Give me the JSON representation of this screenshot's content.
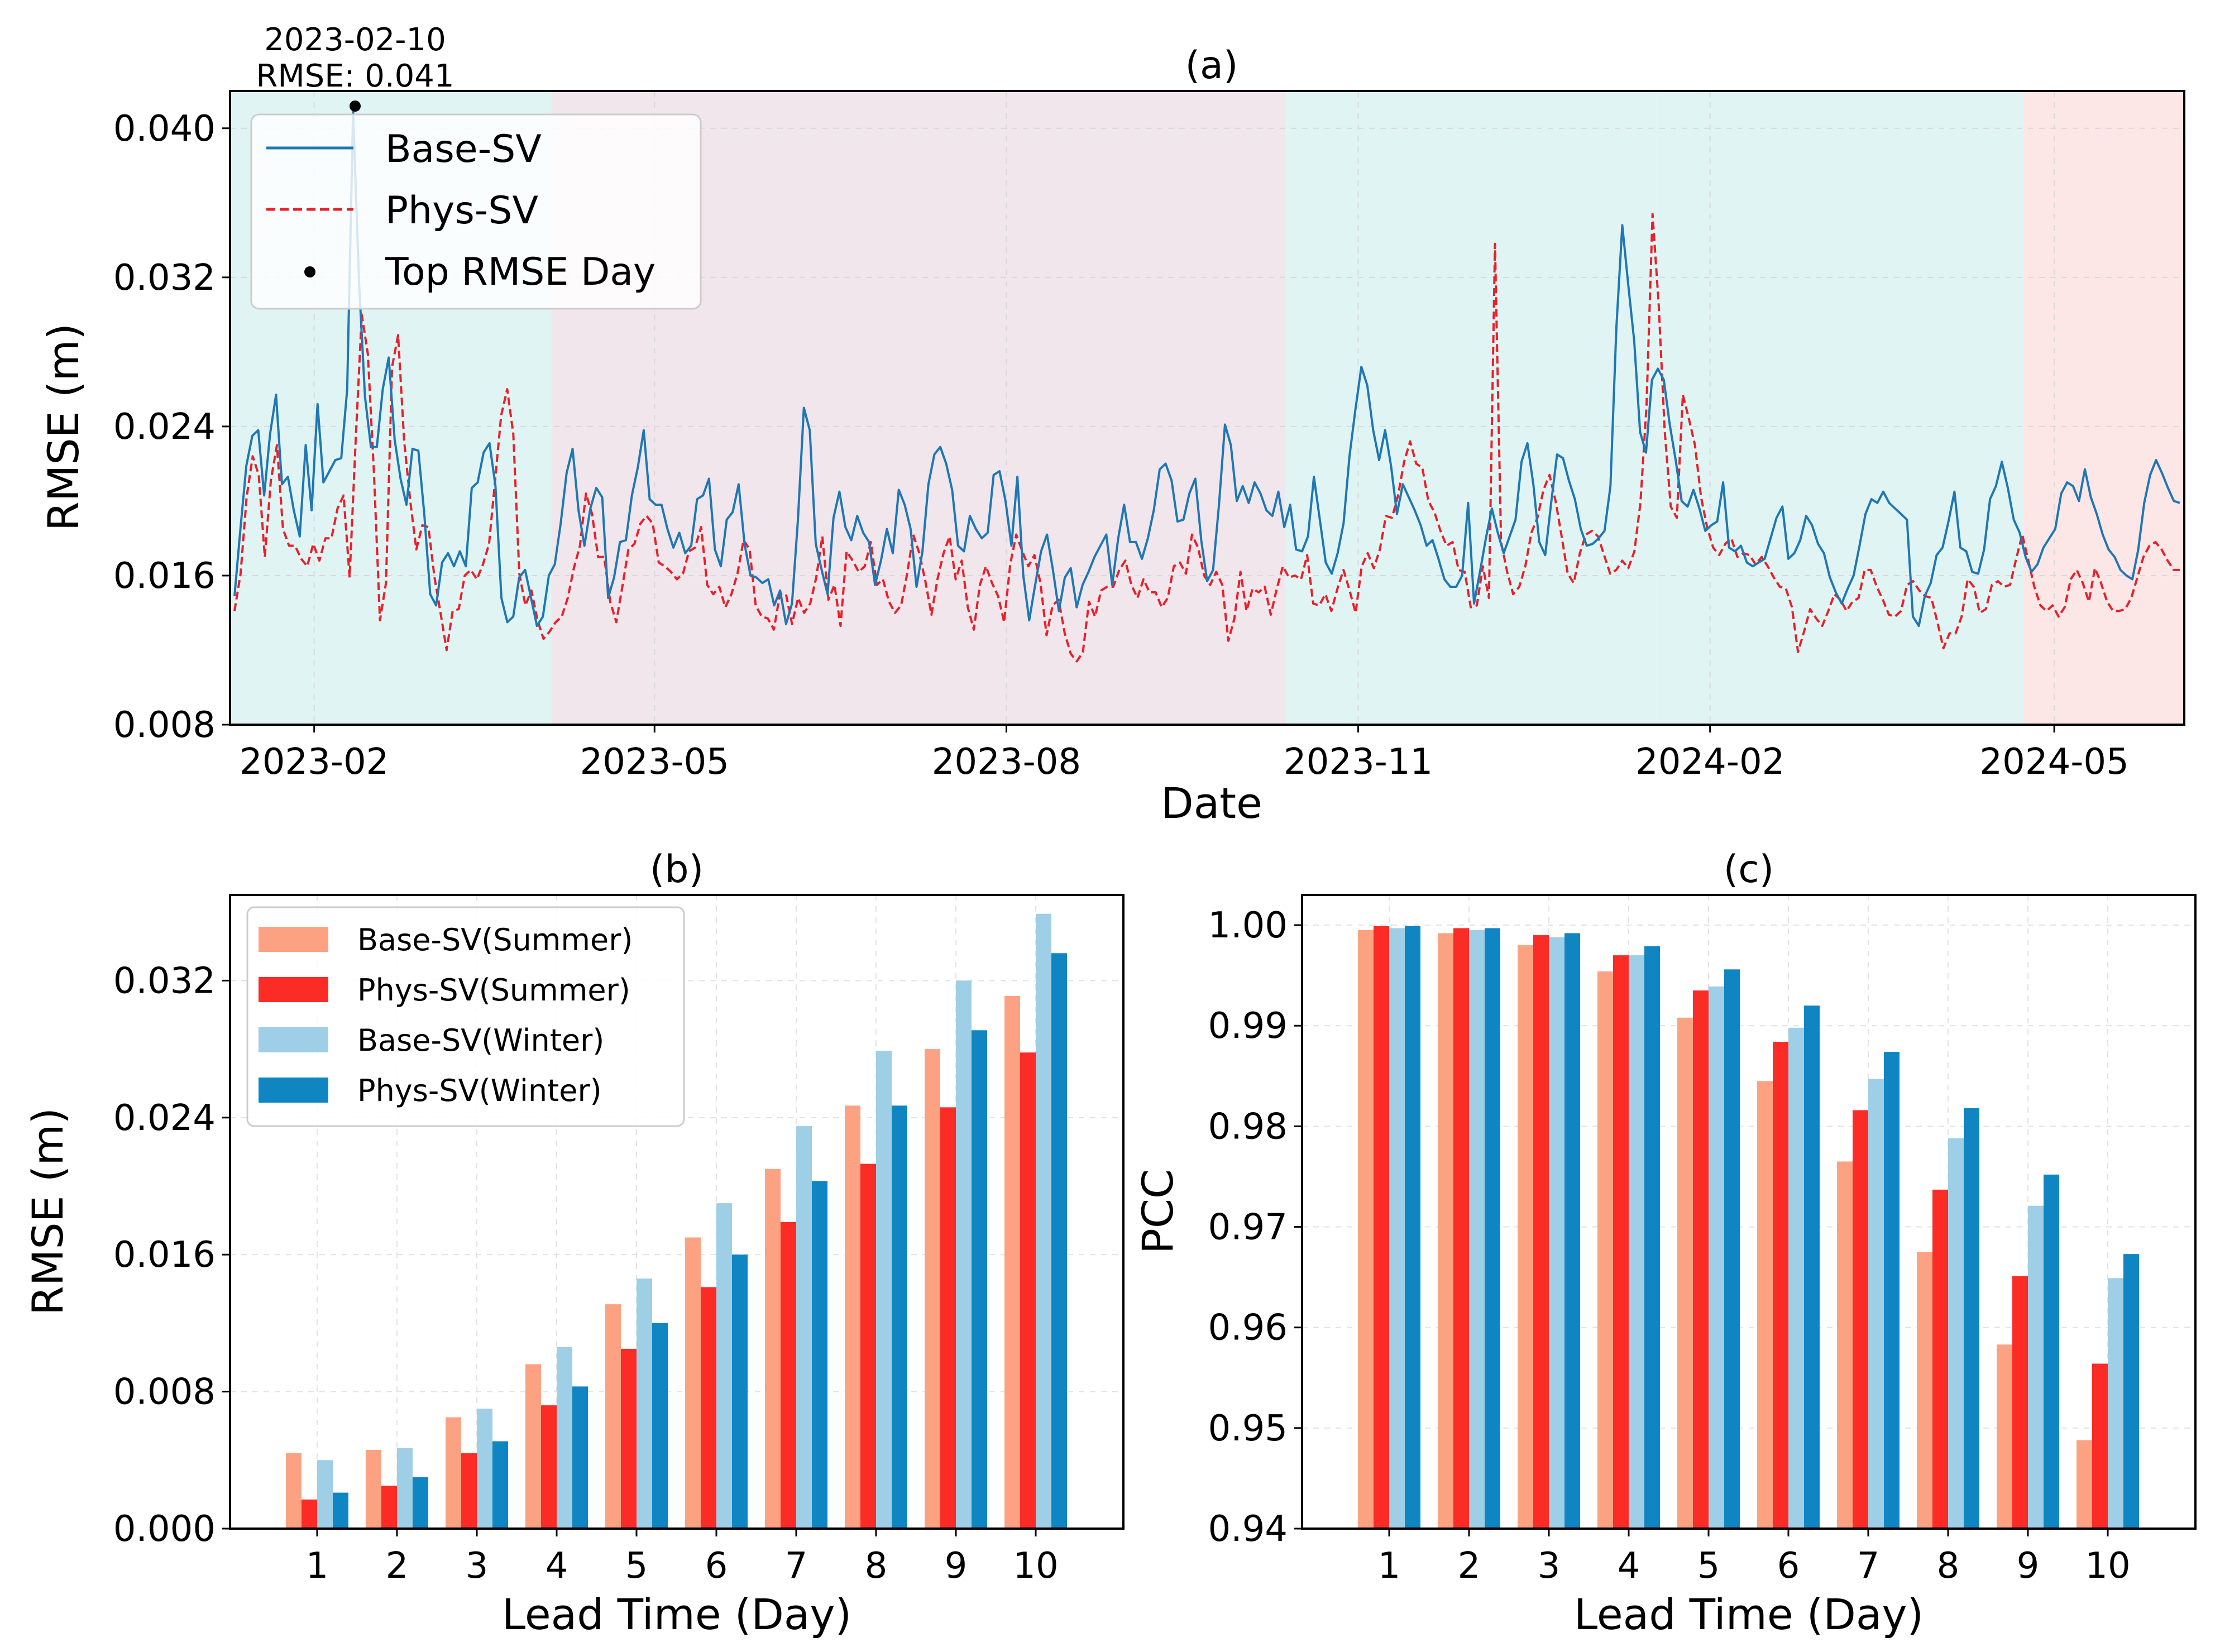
{
  "colors": {
    "base": "#1f77b4",
    "phys": "#e8202a",
    "base_summer": "#fca283",
    "phys_summer": "#fb2b26",
    "base_winter": "#9ecfe6",
    "phys_winter": "#0f86c1",
    "winter_band": "#e0f4f4",
    "summer_band": "#f0e6ec",
    "spring_band": "#fde6e6"
  },
  "chart_data": [
    {
      "id": "a",
      "type": "line",
      "title": "(a)",
      "xlabel": "Date",
      "ylabel": "RMSE (m)",
      "ylim": [
        0.008,
        0.042
      ],
      "yticks": [
        "0.008",
        "0.016",
        "0.024",
        "0.032",
        "0.040"
      ],
      "xticks": [
        "2023-02",
        "2023-05",
        "2023-08",
        "2023-11",
        "2024-02",
        "2024-05"
      ],
      "x_range": [
        "2023-01-10",
        "2024-06-04"
      ],
      "legend": [
        "Base-SV",
        "Phys-SV",
        "Top RMSE Day"
      ],
      "annotation": {
        "date": "2023-02-10",
        "line1": "2023-02-10",
        "line2": "RMSE: 0.041",
        "value": 0.041
      },
      "shaded_periods": [
        {
          "from": "2023-01-10",
          "to": "2023-04-04",
          "season": "winter"
        },
        {
          "from": "2023-04-04",
          "to": "2023-10-13",
          "season": "summer"
        },
        {
          "from": "2023-10-13",
          "to": "2024-01-18",
          "season": "winter"
        },
        {
          "from": "2024-01-18",
          "to": "2024-04-23",
          "season": "winter"
        },
        {
          "from": "2024-04-23",
          "to": "2024-06-04",
          "season": "spring"
        }
      ],
      "series": [
        {
          "name": "Base-SV",
          "style": "solid",
          "values": [
            0.0149,
            0.0185,
            0.0219,
            0.0235,
            0.0238,
            0.0203,
            0.0236,
            0.0257,
            0.0209,
            0.0213,
            0.0195,
            0.0181,
            0.023,
            0.0195,
            0.0252,
            0.021,
            0.0216,
            0.0222,
            0.0223,
            0.026,
            0.0409,
            0.0317,
            0.0256,
            0.0229,
            0.0229,
            0.026,
            0.0277,
            0.0233,
            0.0212,
            0.0198,
            0.0228,
            0.0227,
            0.0193,
            0.015,
            0.0144,
            0.0167,
            0.0172,
            0.0165,
            0.0173,
            0.0165,
            0.0207,
            0.021,
            0.0226,
            0.0231,
            0.0208,
            0.0148,
            0.0135,
            0.0138,
            0.0159,
            0.0163,
            0.0148,
            0.0133,
            0.0138,
            0.016,
            0.0166,
            0.0188,
            0.0215,
            0.0228,
            0.0195,
            0.0176,
            0.0196,
            0.0207,
            0.0202,
            0.0148,
            0.0159,
            0.0178,
            0.0179,
            0.0203,
            0.0218,
            0.0238,
            0.0201,
            0.0198,
            0.0198,
            0.0185,
            0.0175,
            0.0183,
            0.0172,
            0.0176,
            0.0201,
            0.0203,
            0.0212,
            0.0174,
            0.0165,
            0.019,
            0.0194,
            0.0209,
            0.0177,
            0.016,
            0.0159,
            0.0156,
            0.0158,
            0.0144,
            0.0152,
            0.0134,
            0.0145,
            0.019,
            0.025,
            0.0238,
            0.0177,
            0.0163,
            0.015,
            0.0191,
            0.0205,
            0.0186,
            0.0179,
            0.0192,
            0.0183,
            0.0178,
            0.0155,
            0.0168,
            0.0185,
            0.0172,
            0.0206,
            0.0198,
            0.0185,
            0.0154,
            0.0173,
            0.0209,
            0.0225,
            0.0229,
            0.022,
            0.0206,
            0.0176,
            0.0173,
            0.0192,
            0.0185,
            0.018,
            0.0183,
            0.0214,
            0.0216,
            0.02,
            0.0176,
            0.0213,
            0.016,
            0.0136,
            0.0155,
            0.0173,
            0.0182,
            0.0163,
            0.0141,
            0.0159,
            0.0164,
            0.0143,
            0.0155,
            0.0162,
            0.017,
            0.0176,
            0.0182,
            0.0155,
            0.018,
            0.0198,
            0.0178,
            0.0178,
            0.0169,
            0.018,
            0.0195,
            0.0217,
            0.022,
            0.0211,
            0.0189,
            0.019,
            0.0204,
            0.0212,
            0.0179,
            0.0157,
            0.0163,
            0.0198,
            0.0241,
            0.023,
            0.02,
            0.0208,
            0.0199,
            0.021,
            0.0204,
            0.0195,
            0.0192,
            0.0205,
            0.0186,
            0.0198,
            0.0174,
            0.0173,
            0.0181,
            0.0213,
            0.019,
            0.0167,
            0.0161,
            0.0172,
            0.0188,
            0.0224,
            0.0249,
            0.0272,
            0.0262,
            0.0238,
            0.0222,
            0.0238,
            0.0219,
            0.0193,
            0.0209,
            0.0202,
            0.0195,
            0.0187,
            0.0176,
            0.0179,
            0.0169,
            0.0158,
            0.0154,
            0.0154,
            0.016,
            0.0199,
            0.0145,
            0.0162,
            0.018,
            0.0196,
            0.0183,
            0.0172,
            0.0181,
            0.019,
            0.0221,
            0.0231,
            0.0209,
            0.0178,
            0.0171,
            0.0199,
            0.0225,
            0.0223,
            0.0211,
            0.0201,
            0.0185,
            0.0176,
            0.0177,
            0.018,
            0.0184,
            0.0208,
            0.0293,
            0.0348,
            0.0316,
            0.0286,
            0.0237,
            0.0226,
            0.0265,
            0.0271,
            0.0265,
            0.0241,
            0.0222,
            0.02,
            0.0197,
            0.0206,
            0.0196,
            0.0184,
            0.0187,
            0.0189,
            0.021,
            0.0175,
            0.0173,
            0.0176,
            0.0167,
            0.0165,
            0.0167,
            0.0169,
            0.018,
            0.0191,
            0.0197,
            0.0169,
            0.0172,
            0.0179,
            0.0192,
            0.0187,
            0.0177,
            0.0172,
            0.0159,
            0.0151,
            0.0145,
            0.0153,
            0.016,
            0.0176,
            0.0193,
            0.0201,
            0.0199,
            0.0205,
            0.0199,
            0.0196,
            0.0193,
            0.019,
            0.0138,
            0.0133,
            0.0149,
            0.0156,
            0.0171,
            0.0175,
            0.0189,
            0.0205,
            0.0175,
            0.0173,
            0.0162,
            0.0161,
            0.0174,
            0.0201,
            0.0208,
            0.0221,
            0.0207,
            0.019,
            0.0183,
            0.017,
            0.0162,
            0.0166,
            0.0175,
            0.018,
            0.0185,
            0.0204,
            0.021,
            0.0208,
            0.02,
            0.0217,
            0.0202,
            0.0193,
            0.0182,
            0.0174,
            0.017,
            0.0163,
            0.016,
            0.0158,
            0.0174,
            0.0199,
            0.0214,
            0.0222,
            0.0215,
            0.0207,
            0.02,
            0.0199
          ]
        },
        {
          "name": "Phys-SV",
          "style": "dashed",
          "values": [
            0.0141,
            0.0161,
            0.0202,
            0.0224,
            0.0214,
            0.017,
            0.0211,
            0.023,
            0.0185,
            0.0176,
            0.0176,
            0.0169,
            0.0165,
            0.0177,
            0.0168,
            0.018,
            0.018,
            0.0196,
            0.0203,
            0.0159,
            0.0233,
            0.03,
            0.0279,
            0.0216,
            0.0136,
            0.0156,
            0.0272,
            0.0289,
            0.0232,
            0.02,
            0.0174,
            0.0187,
            0.0186,
            0.0159,
            0.014,
            0.012,
            0.0141,
            0.0142,
            0.016,
            0.0163,
            0.0158,
            0.0166,
            0.0177,
            0.0211,
            0.0246,
            0.026,
            0.0236,
            0.0161,
            0.0144,
            0.0152,
            0.0136,
            0.0126,
            0.013,
            0.0135,
            0.0138,
            0.0148,
            0.0164,
            0.0176,
            0.0204,
            0.0193,
            0.017,
            0.017,
            0.0146,
            0.0135,
            0.0154,
            0.0174,
            0.0177,
            0.0188,
            0.0192,
            0.0188,
            0.0167,
            0.0165,
            0.0162,
            0.0158,
            0.0161,
            0.0173,
            0.0175,
            0.0186,
            0.0155,
            0.015,
            0.0154,
            0.0143,
            0.015,
            0.0161,
            0.0179,
            0.0174,
            0.0144,
            0.0138,
            0.0137,
            0.0131,
            0.015,
            0.015,
            0.0134,
            0.0148,
            0.014,
            0.0145,
            0.0159,
            0.0181,
            0.0147,
            0.0155,
            0.0133,
            0.0173,
            0.0168,
            0.0162,
            0.0165,
            0.0178,
            0.0155,
            0.0158,
            0.0146,
            0.014,
            0.0144,
            0.0161,
            0.0182,
            0.0172,
            0.0157,
            0.0139,
            0.0158,
            0.0172,
            0.0181,
            0.0158,
            0.0168,
            0.0143,
            0.0131,
            0.0155,
            0.0165,
            0.0156,
            0.0149,
            0.0135,
            0.0166,
            0.0182,
            0.0173,
            0.0165,
            0.0171,
            0.0156,
            0.0128,
            0.0144,
            0.0147,
            0.0129,
            0.0118,
            0.0114,
            0.0119,
            0.0146,
            0.0138,
            0.0152,
            0.0154,
            0.0154,
            0.0163,
            0.0168,
            0.0155,
            0.0148,
            0.0158,
            0.0151,
            0.0151,
            0.0143,
            0.0148,
            0.0165,
            0.0167,
            0.0161,
            0.0182,
            0.0175,
            0.016,
            0.0155,
            0.0162,
            0.0155,
            0.0125,
            0.0137,
            0.0162,
            0.0141,
            0.0153,
            0.0151,
            0.0154,
            0.0139,
            0.0153,
            0.0165,
            0.0159,
            0.016,
            0.0158,
            0.0171,
            0.0145,
            0.0144,
            0.015,
            0.0141,
            0.0153,
            0.0163,
            0.0152,
            0.014,
            0.0165,
            0.0172,
            0.0164,
            0.0174,
            0.0192,
            0.0191,
            0.0203,
            0.0221,
            0.0232,
            0.022,
            0.0218,
            0.02,
            0.0194,
            0.0184,
            0.0176,
            0.0178,
            0.0163,
            0.0162,
            0.0143,
            0.0144,
            0.0165,
            0.0148,
            0.0338,
            0.0178,
            0.0162,
            0.015,
            0.0154,
            0.0165,
            0.0183,
            0.0191,
            0.0206,
            0.0214,
            0.02,
            0.0181,
            0.0161,
            0.0156,
            0.0172,
            0.0182,
            0.0184,
            0.0181,
            0.0171,
            0.0161,
            0.0163,
            0.0168,
            0.0164,
            0.0173,
            0.0199,
            0.0251,
            0.0354,
            0.0306,
            0.0238,
            0.0197,
            0.0191,
            0.0257,
            0.0244,
            0.023,
            0.0202,
            0.0186,
            0.0175,
            0.0171,
            0.0177,
            0.018,
            0.017,
            0.0172,
            0.0171,
            0.0166,
            0.017,
            0.0165,
            0.0159,
            0.0154,
            0.0153,
            0.0143,
            0.0119,
            0.013,
            0.0142,
            0.0137,
            0.0133,
            0.0141,
            0.015,
            0.0147,
            0.0141,
            0.0146,
            0.0148,
            0.0163,
            0.0163,
            0.0154,
            0.0147,
            0.0139,
            0.0138,
            0.0141,
            0.0155,
            0.0157,
            0.0152,
            0.0149,
            0.0148,
            0.0135,
            0.0121,
            0.0129,
            0.0129,
            0.0138,
            0.0158,
            0.0154,
            0.014,
            0.0142,
            0.0155,
            0.0157,
            0.0154,
            0.0155,
            0.0169,
            0.0182,
            0.0168,
            0.0154,
            0.0144,
            0.0141,
            0.0144,
            0.0138,
            0.0143,
            0.0158,
            0.0163,
            0.0156,
            0.0146,
            0.0164,
            0.0156,
            0.0146,
            0.0141,
            0.0141,
            0.0142,
            0.0148,
            0.0159,
            0.017,
            0.0176,
            0.0178,
            0.0174,
            0.0168,
            0.0163,
            0.0163
          ]
        }
      ]
    },
    {
      "id": "b",
      "type": "bar",
      "title": "(b)",
      "xlabel": "Lead Time (Day)",
      "ylabel": "RMSE (m)",
      "ylim": [
        0.0,
        0.037
      ],
      "yticks": [
        "0.000",
        "0.008",
        "0.016",
        "0.024",
        "0.032"
      ],
      "categories": [
        "1",
        "2",
        "3",
        "4",
        "5",
        "6",
        "7",
        "8",
        "9",
        "10"
      ],
      "series": [
        {
          "name": "Base-SV(Summer)",
          "values": [
            0.0044,
            0.0046,
            0.0065,
            0.0096,
            0.0131,
            0.017,
            0.021,
            0.0247,
            0.028,
            0.0311
          ]
        },
        {
          "name": "Phys-SV(Summer)",
          "values": [
            0.0017,
            0.0025,
            0.0044,
            0.0072,
            0.0105,
            0.0141,
            0.0179,
            0.0213,
            0.0246,
            0.0278
          ]
        },
        {
          "name": "Base-SV(Winter)",
          "values": [
            0.004,
            0.0047,
            0.007,
            0.0106,
            0.0146,
            0.019,
            0.0235,
            0.0279,
            0.032,
            0.0359
          ]
        },
        {
          "name": "Phys-SV(Winter)",
          "values": [
            0.0021,
            0.003,
            0.0051,
            0.0083,
            0.012,
            0.016,
            0.0203,
            0.0247,
            0.0291,
            0.0336
          ]
        }
      ]
    },
    {
      "id": "c",
      "type": "bar",
      "title": "(c)",
      "xlabel": "Lead Time (Day)",
      "ylabel": "PCC",
      "ylim": [
        0.94,
        1.003
      ],
      "yticks": [
        "0.94",
        "0.95",
        "0.96",
        "0.97",
        "0.98",
        "0.99",
        "1.00"
      ],
      "categories": [
        "1",
        "2",
        "3",
        "4",
        "5",
        "6",
        "7",
        "8",
        "9",
        "10"
      ],
      "series": [
        {
          "name": "Base-SV(Summer)",
          "values": [
            0.9995,
            0.9992,
            0.998,
            0.9954,
            0.9908,
            0.9845,
            0.9765,
            0.9675,
            0.9583,
            0.9488
          ]
        },
        {
          "name": "Phys-SV(Summer)",
          "values": [
            0.9999,
            0.9997,
            0.999,
            0.997,
            0.9935,
            0.9884,
            0.9816,
            0.9737,
            0.9651,
            0.9564
          ]
        },
        {
          "name": "Base-SV(Winter)",
          "values": [
            0.9997,
            0.9995,
            0.9988,
            0.997,
            0.9939,
            0.9898,
            0.9847,
            0.9788,
            0.9721,
            0.9649
          ]
        },
        {
          "name": "Phys-SV(Winter)",
          "values": [
            0.9999,
            0.9997,
            0.9992,
            0.9979,
            0.9956,
            0.992,
            0.9874,
            0.9818,
            0.9752,
            0.9673
          ]
        }
      ]
    }
  ]
}
